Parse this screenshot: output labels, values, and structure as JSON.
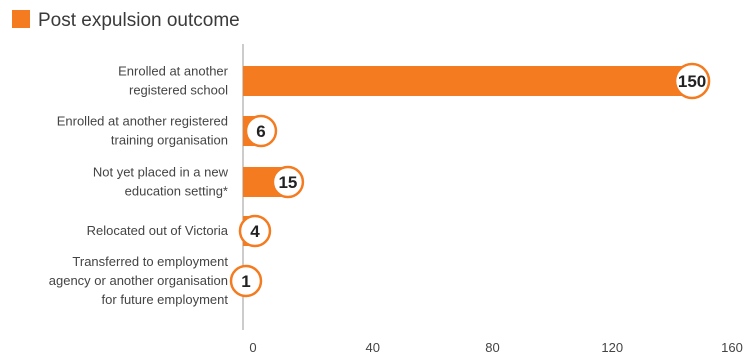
{
  "chart_data": {
    "type": "bar",
    "orientation": "horizontal",
    "legend": {
      "label": "Post expulsion outcome",
      "color": "#f47b20",
      "placement": "top-left"
    },
    "categories": [
      [
        "Enrolled at another",
        "registered school"
      ],
      [
        "Enrolled at another registered",
        "training organisation"
      ],
      [
        "Not yet placed in a new",
        "education setting*"
      ],
      [
        "Relocated out of Victoria"
      ],
      [
        "Transferred to employment",
        "agency or another organisation",
        "for future employment"
      ]
    ],
    "values": [
      150,
      6,
      15,
      4,
      1
    ],
    "xlim": [
      0,
      160
    ],
    "xticks": [
      0,
      40,
      80,
      120,
      160
    ],
    "grid": false,
    "colors": {
      "bar": "#f47b20",
      "badge_border": "#f47b20",
      "badge_fill": "#ffffff",
      "axis": "#9a9a9a"
    }
  }
}
